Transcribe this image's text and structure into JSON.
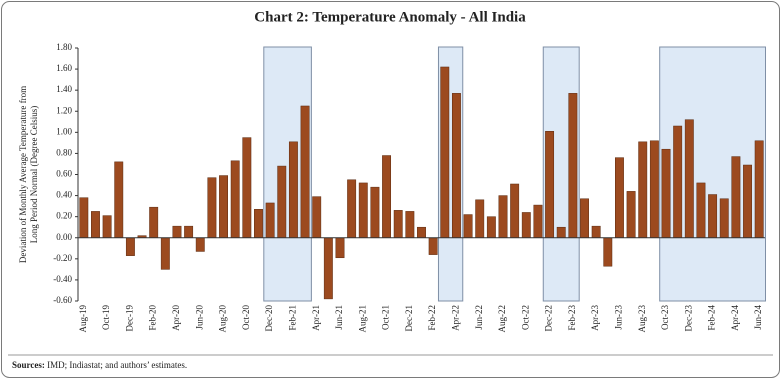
{
  "chart_data": {
    "type": "bar",
    "title": "Chart 2: Temperature Anomaly - All India",
    "ylabel_lines": [
      "Deviation of Monthly Average Temperature from",
      "Long Period Normal (Degree Celsius)"
    ],
    "categories": [
      "Aug-19",
      null,
      "Oct-19",
      null,
      "Dec-19",
      null,
      "Feb-20",
      null,
      "Apr-20",
      null,
      "Jun-20",
      null,
      "Aug-20",
      null,
      "Oct-20",
      null,
      "Dec-20",
      null,
      "Feb-21",
      null,
      "Apr-21",
      null,
      "Jun-21",
      null,
      "Aug-21",
      null,
      "Oct-21",
      null,
      "Dec-21",
      null,
      "Feb-22",
      null,
      "Apr-22",
      null,
      "Jun-22",
      null,
      "Aug-22",
      null,
      "Oct-22",
      null,
      "Dec-22",
      null,
      "Feb-23",
      null,
      "Apr-23",
      null,
      "Jun-23",
      null,
      "Aug-23",
      null,
      "Oct-23",
      null,
      "Dec-23",
      null,
      "Feb-24",
      null,
      "Apr-24",
      null,
      "Jun-24"
    ],
    "values": [
      0.38,
      0.25,
      0.21,
      0.72,
      -0.17,
      0.02,
      0.29,
      -0.3,
      0.11,
      0.11,
      -0.13,
      0.57,
      0.59,
      0.73,
      0.95,
      0.27,
      0.33,
      0.68,
      0.91,
      1.25,
      0.39,
      -0.58,
      -0.19,
      0.55,
      0.52,
      0.48,
      0.78,
      0.26,
      0.25,
      0.1,
      -0.16,
      1.62,
      1.37,
      0.22,
      0.36,
      0.2,
      0.4,
      0.51,
      0.24,
      0.31,
      1.01,
      0.1,
      1.37,
      0.37,
      0.11,
      -0.27,
      0.76,
      0.44,
      0.91,
      0.92,
      0.84,
      1.06,
      1.12,
      0.52,
      0.41,
      0.37,
      0.77,
      0.69,
      0.92
    ],
    "color": "#9c4a1f",
    "highlighted": [
      [
        16,
        19
      ],
      [
        31,
        32
      ],
      [
        40,
        42
      ],
      [
        50,
        58
      ]
    ],
    "highlight_color": "#dde9f6",
    "ylim": [
      -0.6,
      1.8
    ],
    "yticks": [
      {
        "value": -0.6,
        "label": "-0.60"
      },
      {
        "value": -0.4,
        "label": "-0.40"
      },
      {
        "value": -0.2,
        "label": "-0.20"
      },
      {
        "value": 0,
        "label": "0.00"
      },
      {
        "value": 0.2,
        "label": "0.20"
      },
      {
        "value": 0.4,
        "label": "0.40"
      },
      {
        "value": 0.6,
        "label": "0.60"
      },
      {
        "value": 0.8,
        "label": "0.80"
      },
      {
        "value": 1.0,
        "label": "1.00"
      },
      {
        "value": 1.2,
        "label": "1.20"
      },
      {
        "value": 1.4,
        "label": "1.40"
      },
      {
        "value": 1.6,
        "label": "1.60"
      },
      {
        "value": 1.8,
        "label": "1.80"
      }
    ],
    "grid": false,
    "source": {
      "label": "Sources:",
      "text": "IMD; Indiastat; and authors’ estimates."
    }
  }
}
